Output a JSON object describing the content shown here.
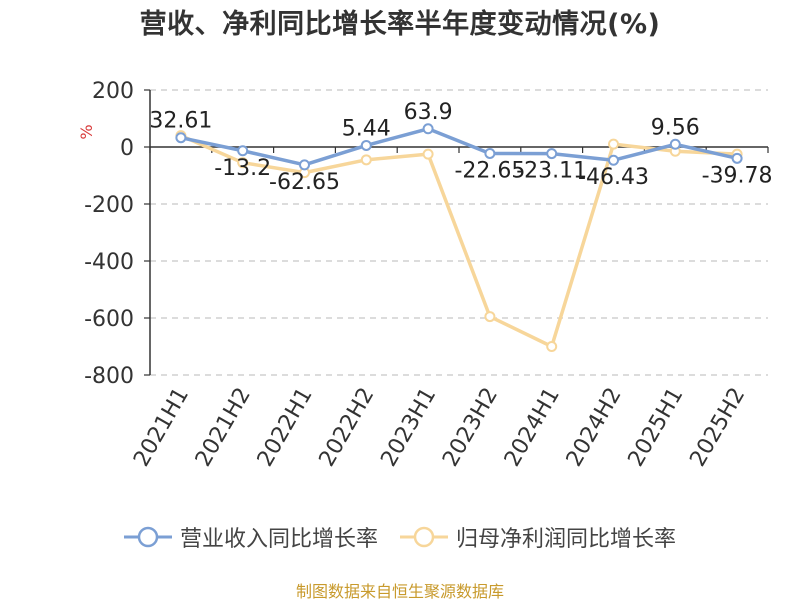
{
  "chart_data": {
    "type": "line",
    "title": "营收、净利同比增长率半年度变动情况(%)",
    "ylabel": "%",
    "xlabel": "",
    "categories": [
      "2021H1",
      "2021H2",
      "2022H1",
      "2022H2",
      "2023H1",
      "2023H2",
      "2024H1",
      "2024H2",
      "2025H1",
      "2025H2"
    ],
    "y_ticks": [
      "200",
      "0",
      "-200",
      "-400",
      "-600",
      "-800"
    ],
    "ylim": [
      -800,
      200
    ],
    "grid": true,
    "legend_position": "bottom",
    "series": [
      {
        "name": "营业收入同比增长率",
        "color": "#7b9fd4",
        "values": [
          32.61,
          -13.2,
          -62.65,
          5.44,
          63.9,
          -22.65,
          -23.11,
          -46.43,
          9.56,
          -39.78
        ],
        "labels": [
          "32.61",
          "-13.2",
          "-62.65",
          "5.44",
          "63.9",
          "-22.65",
          "-23.11",
          "-46.43",
          "9.56",
          "-39.78"
        ]
      },
      {
        "name": "归母净利润同比增长率",
        "color": "#f7d69a",
        "values": [
          40,
          -55,
          -90,
          -45,
          -25,
          -595,
          -700,
          10,
          -15,
          -25
        ]
      }
    ]
  },
  "source": "制图数据来自恒生聚源数据库"
}
